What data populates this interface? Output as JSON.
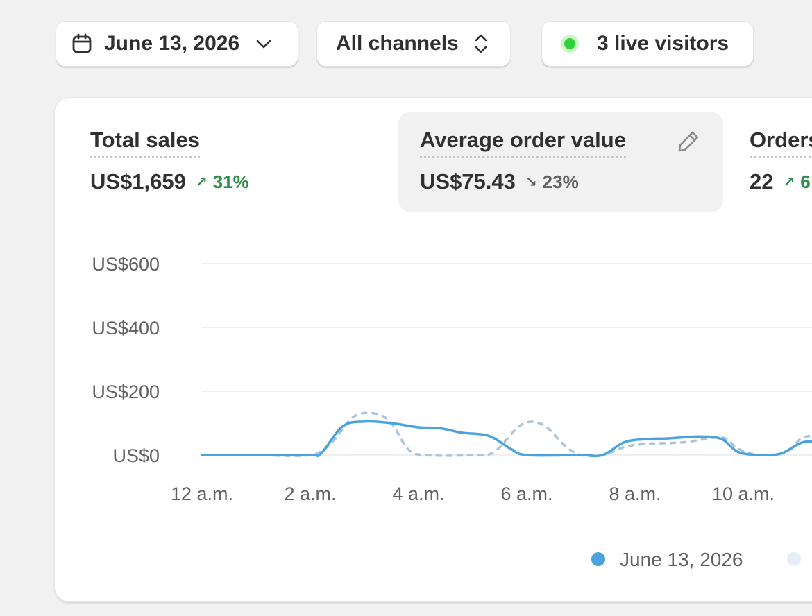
{
  "toolbar": {
    "date_label": "June 13, 2026",
    "channel_label": "All channels",
    "live_visitors_label": "3 live visitors"
  },
  "metrics": [
    {
      "title": "Total sales",
      "value": "US$1,659",
      "change": "31%",
      "direction": "up"
    },
    {
      "title": "Average order value",
      "value": "US$75.43",
      "change": "23%",
      "direction": "down"
    },
    {
      "title": "Orders",
      "value": "22",
      "change": "6",
      "direction": "up"
    }
  ],
  "colors": {
    "current_series": "#4aa3df",
    "comparison_series": "#aac4d9",
    "positive": "#2f8c4b",
    "live": "#2fd13a"
  },
  "icons": [
    "calendar-icon",
    "chevron-down-icon",
    "select-arrows-icon",
    "live-dot-icon",
    "pencil-icon"
  ],
  "chart_data": {
    "type": "line",
    "y_tick_labels": [
      "US$600",
      "US$400",
      "US$200",
      "US$0"
    ],
    "y_ticks": [
      600,
      400,
      200,
      0
    ],
    "ylim": [
      0,
      600
    ],
    "x_tick_labels": [
      "12 a.m.",
      "2 a.m.",
      "4 a.m.",
      "6 a.m.",
      "8 a.m.",
      "10 a.m."
    ],
    "x_ticks": [
      0,
      2,
      4,
      6,
      8,
      10
    ],
    "series": [
      {
        "name": "June 13, 2026",
        "style": "solid",
        "points": [
          [
            0,
            0
          ],
          [
            1,
            0
          ],
          [
            2,
            0
          ],
          [
            2.2,
            5
          ],
          [
            2.6,
            90
          ],
          [
            3,
            105
          ],
          [
            3.5,
            100
          ],
          [
            4,
            87
          ],
          [
            4.4,
            84
          ],
          [
            4.8,
            70
          ],
          [
            5.3,
            60
          ],
          [
            5.7,
            20
          ],
          [
            6,
            0
          ],
          [
            7,
            0
          ],
          [
            7.4,
            0
          ],
          [
            7.8,
            40
          ],
          [
            8.2,
            50
          ],
          [
            8.6,
            52
          ],
          [
            9.2,
            58
          ],
          [
            9.6,
            50
          ],
          [
            9.9,
            10
          ],
          [
            10.3,
            0
          ],
          [
            10.7,
            5
          ],
          [
            11.1,
            40
          ],
          [
            11.5,
            42
          ]
        ]
      },
      {
        "name": "",
        "style": "dashed",
        "points": [
          [
            0,
            0
          ],
          [
            1,
            0
          ],
          [
            2,
            0
          ],
          [
            2.4,
            40
          ],
          [
            2.8,
            120
          ],
          [
            3.2,
            130
          ],
          [
            3.5,
            100
          ],
          [
            3.8,
            20
          ],
          [
            4.1,
            0
          ],
          [
            5,
            0
          ],
          [
            5.4,
            10
          ],
          [
            5.9,
            95
          ],
          [
            6.3,
            95
          ],
          [
            6.7,
            30
          ],
          [
            7,
            0
          ],
          [
            7.4,
            0
          ],
          [
            7.8,
            25
          ],
          [
            8.2,
            35
          ],
          [
            8.9,
            40
          ],
          [
            9.6,
            55
          ],
          [
            9.9,
            20
          ],
          [
            10.3,
            0
          ],
          [
            10.8,
            10
          ],
          [
            11.1,
            55
          ],
          [
            11.5,
            60
          ]
        ]
      }
    ],
    "legend": [
      {
        "label": "June 13, 2026"
      },
      {
        "label": ""
      }
    ]
  }
}
